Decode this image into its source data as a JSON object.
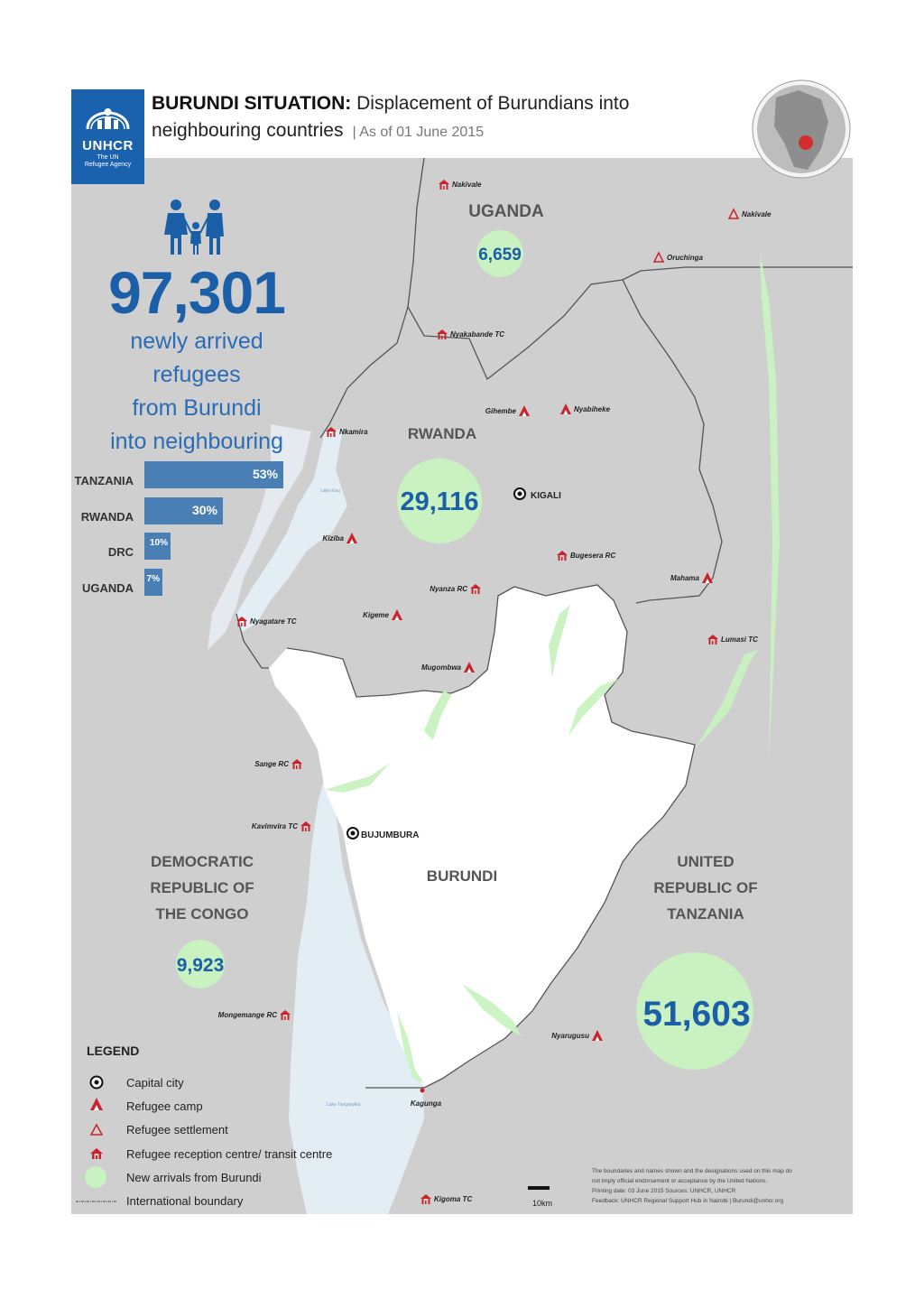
{
  "header": {
    "title_bold": "BURUNDI SITUATION:",
    "title_rest": "Displacement of Burundians into",
    "title_line2": "neighbouring countries",
    "date_label": "| As of 01 June 2015"
  },
  "logo": {
    "name": "UNHCR",
    "tagline_1": "The UN",
    "tagline_2": "Refugee Agency",
    "icon": "unhcr-people-shelter-icon"
  },
  "summary": {
    "total": "97,301",
    "description_lines": [
      "newly arrived refugees",
      "from Burundi",
      "into neighbouring",
      "countries"
    ],
    "icon": "family-icon"
  },
  "distribution": [
    {
      "country": "TANZANIA",
      "percent": 53,
      "label": "53%"
    },
    {
      "country": "RWANDA",
      "percent": 30,
      "label": "30%"
    },
    {
      "country": "DRC",
      "percent": 10,
      "label": "10%"
    },
    {
      "country": "UGANDA",
      "percent": 7,
      "label": "7%"
    }
  ],
  "countries": [
    {
      "id": "uganda",
      "name_lines": [
        "UGANDA"
      ],
      "count": "6,659"
    },
    {
      "id": "rwanda",
      "name_lines": [
        "RWANDA"
      ],
      "count": "29,116"
    },
    {
      "id": "drc",
      "name_lines": [
        "DEMOCRATIC",
        "REPUBLIC OF",
        "THE CONGO"
      ],
      "count": "9,923"
    },
    {
      "id": "tanzania",
      "name_lines": [
        "UNITED",
        "REPUBLIC OF",
        "TANZANIA"
      ],
      "count": "51,603"
    },
    {
      "id": "burundi",
      "name_lines": [
        "BURUNDI"
      ],
      "count": ""
    }
  ],
  "capitals": [
    {
      "name": "KIGALI"
    },
    {
      "name": "BUJUMBURA"
    }
  ],
  "sites": [
    {
      "name": "Nakivale",
      "type": "reception"
    },
    {
      "name": "Nakivale",
      "type": "settlement"
    },
    {
      "name": "Oruchinga",
      "type": "settlement"
    },
    {
      "name": "Nyakabande TC",
      "type": "reception"
    },
    {
      "name": "Gihembe",
      "type": "camp"
    },
    {
      "name": "Nyabiheke",
      "type": "camp"
    },
    {
      "name": "Nkamira",
      "type": "reception"
    },
    {
      "name": "Kiziba",
      "type": "camp"
    },
    {
      "name": "Bugesera RC",
      "type": "reception"
    },
    {
      "name": "Mahama",
      "type": "camp"
    },
    {
      "name": "Nyanza RC",
      "type": "reception"
    },
    {
      "name": "Kigeme",
      "type": "camp"
    },
    {
      "name": "Nyagatare TC",
      "type": "reception"
    },
    {
      "name": "Mugombwa",
      "type": "camp"
    },
    {
      "name": "Lumasi TC",
      "type": "reception"
    },
    {
      "name": "Sange RC",
      "type": "reception"
    },
    {
      "name": "Kavimvira TC",
      "type": "reception"
    },
    {
      "name": "Mongemange RC",
      "type": "reception"
    },
    {
      "name": "Nyarugusu",
      "type": "camp"
    },
    {
      "name": "Kagunga",
      "type": "site"
    },
    {
      "name": "Kigoma TC",
      "type": "reception"
    }
  ],
  "water": [
    {
      "name": "Lake Kivu"
    },
    {
      "name": "Lake Tanganyika"
    }
  ],
  "legend": {
    "title": "LEGEND",
    "items": [
      {
        "label": "Capital city",
        "icon": "capital-city-icon"
      },
      {
        "label": "Refugee camp",
        "icon": "refugee-camp-icon"
      },
      {
        "label": "Refugee settlement",
        "icon": "refugee-settlement-icon"
      },
      {
        "label": "Refugee reception centre/ transit centre",
        "icon": "reception-centre-icon"
      },
      {
        "label": "New arrivals from Burundi",
        "icon": "new-arrivals-circle-icon"
      },
      {
        "label": "International boundary",
        "icon": "boundary-line-icon"
      }
    ]
  },
  "scale": {
    "label": "10km"
  },
  "footnote": {
    "lines": [
      "The boundaries and names shown and the designations used on this map do",
      "not imply official endorsement or acceptance by the United Nations.",
      "Printing date: 03 June 2015  Sources: UNHCR, UNHCR",
      "Feedback: UNHCR Regional Support Hub in Nairobi  |  Burundi@unhcr.org"
    ]
  },
  "colors": {
    "unhcr_blue": "#1a62ae",
    "land": "#cfcfcf",
    "burundi": "#ffffff",
    "water": "#e3edf4",
    "arrival": "#c9f2c0",
    "bar": "#4a7fb5",
    "marker": "#c8242b"
  }
}
